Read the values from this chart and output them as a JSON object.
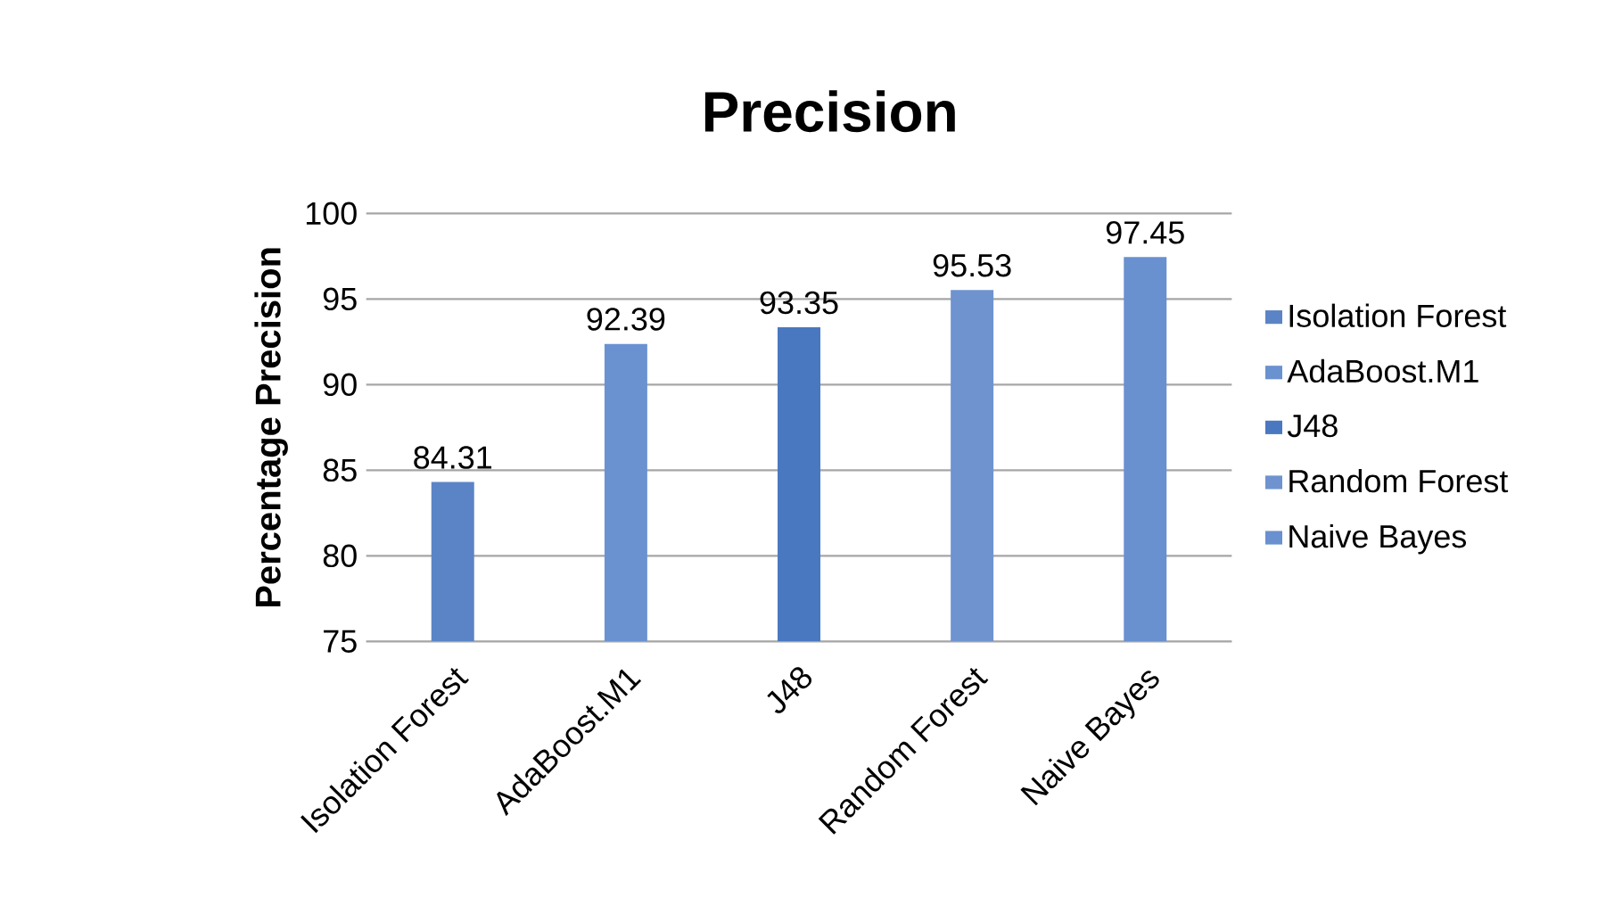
{
  "chart_data": {
    "type": "bar",
    "title": "Precision",
    "ylabel": "Percentage Precision",
    "categories": [
      "Isolation Forest",
      "AdaBoost.M1",
      "J48",
      "Random Forest",
      "Naive Bayes"
    ],
    "series": [
      {
        "name": "Isolation Forest",
        "color": "#5b84c6",
        "values": [
          84.31,
          null,
          null,
          null,
          null
        ]
      },
      {
        "name": "AdaBoost.M1",
        "color": "#6a92d0",
        "values": [
          null,
          92.39,
          null,
          null,
          null
        ]
      },
      {
        "name": "J48",
        "color": "#4a78c0",
        "values": [
          null,
          null,
          93.35,
          null,
          null
        ]
      },
      {
        "name": "Random Forest",
        "color": "#6e93cf",
        "values": [
          null,
          null,
          null,
          95.53,
          null
        ]
      },
      {
        "name": "Naive Bayes",
        "color": "#6990cf",
        "values": [
          null,
          null,
          null,
          null,
          97.45
        ]
      }
    ],
    "ylim": [
      75,
      100
    ],
    "yticks": [
      75,
      80,
      85,
      90,
      95,
      100
    ],
    "grid": "y",
    "legend": "right",
    "data_labels": true
  }
}
